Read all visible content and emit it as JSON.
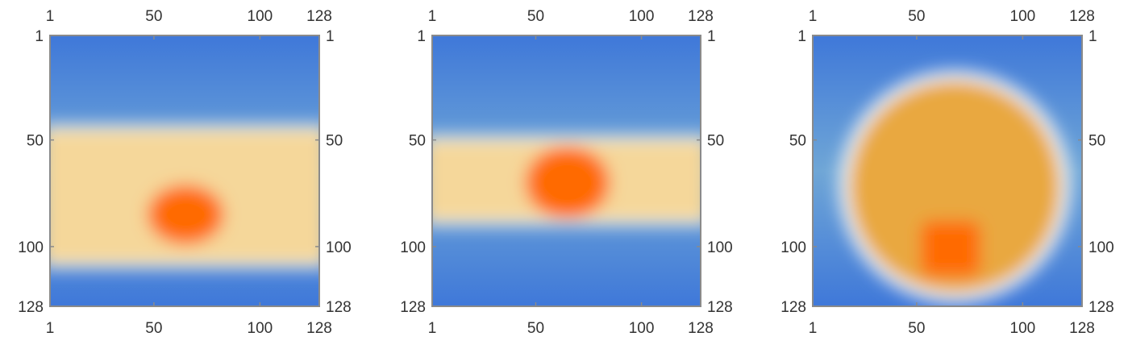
{
  "chart_data": [
    {
      "type": "heatmap",
      "xlim": [
        1,
        128
      ],
      "ylim": [
        1,
        128
      ],
      "y_reversed": true,
      "x_ticks": [
        1,
        50,
        100,
        128
      ],
      "y_ticks": [
        1,
        50,
        100,
        128
      ],
      "tick_labels": {
        "top": [
          "1",
          "50",
          "100",
          "128"
        ],
        "bottom": [
          "1",
          "50",
          "100",
          "128"
        ],
        "left": [
          "1",
          "50",
          "100",
          "128"
        ],
        "right": [
          "1",
          "50",
          "100",
          "128"
        ]
      },
      "colormap": [
        "#3a6fd8",
        "#6fa6d6",
        "#ffffff",
        "#f5d79a",
        "#e9a83f",
        "#ff6a00"
      ],
      "background_color": "#3f78d9",
      "regions": [
        {
          "shape": "band",
          "x_range": [
            1,
            128
          ],
          "y_range": [
            45,
            108
          ],
          "level": 0.45
        },
        {
          "shape": "ellipse",
          "center": [
            65,
            85
          ],
          "radius": [
            18,
            14
          ],
          "level": 1.0
        }
      ]
    },
    {
      "type": "heatmap",
      "xlim": [
        1,
        128
      ],
      "ylim": [
        1,
        128
      ],
      "y_reversed": true,
      "x_ticks": [
        1,
        50,
        100,
        128
      ],
      "y_ticks": [
        1,
        50,
        100,
        128
      ],
      "tick_labels": {
        "top": [
          "1",
          "50",
          "100",
          "128"
        ],
        "bottom": [
          "1",
          "50",
          "100",
          "128"
        ],
        "left": [
          "1",
          "50",
          "100",
          "128"
        ],
        "right": [
          "1",
          "50",
          "100",
          "128"
        ]
      },
      "colormap": [
        "#3a6fd8",
        "#6fa6d6",
        "#ffffff",
        "#f5d79a",
        "#e9a83f",
        "#ff6a00"
      ],
      "background_color": "#3f78d9",
      "regions": [
        {
          "shape": "band",
          "x_range": [
            1,
            128
          ],
          "y_range": [
            50,
            88
          ],
          "level": 0.4
        },
        {
          "shape": "ellipse",
          "center": [
            65,
            70
          ],
          "radius": [
            20,
            17
          ],
          "level": 1.0
        }
      ]
    },
    {
      "type": "heatmap",
      "xlim": [
        1,
        128
      ],
      "ylim": [
        1,
        128
      ],
      "y_reversed": true,
      "x_ticks": [
        1,
        50,
        100,
        128
      ],
      "y_ticks": [
        1,
        50,
        100,
        128
      ],
      "tick_labels": {
        "top": [
          "1",
          "50",
          "100",
          "128"
        ],
        "bottom": [
          "1",
          "50",
          "100",
          "128"
        ],
        "left": [
          "1",
          "50",
          "100",
          "128"
        ],
        "right": [
          "1",
          "50",
          "100",
          "128"
        ]
      },
      "colormap": [
        "#3a6fd8",
        "#6fa6d6",
        "#ffffff",
        "#f5d79a",
        "#e9a83f",
        "#ff6a00"
      ],
      "background_color": "#3f78d9",
      "regions": [
        {
          "shape": "ellipse",
          "center": [
            68,
            72
          ],
          "radius": [
            50,
            50
          ],
          "level": 0.55
        },
        {
          "shape": "rect",
          "x_range": [
            52,
            80
          ],
          "y_range": [
            88,
            114
          ],
          "level": 1.0
        }
      ]
    }
  ]
}
